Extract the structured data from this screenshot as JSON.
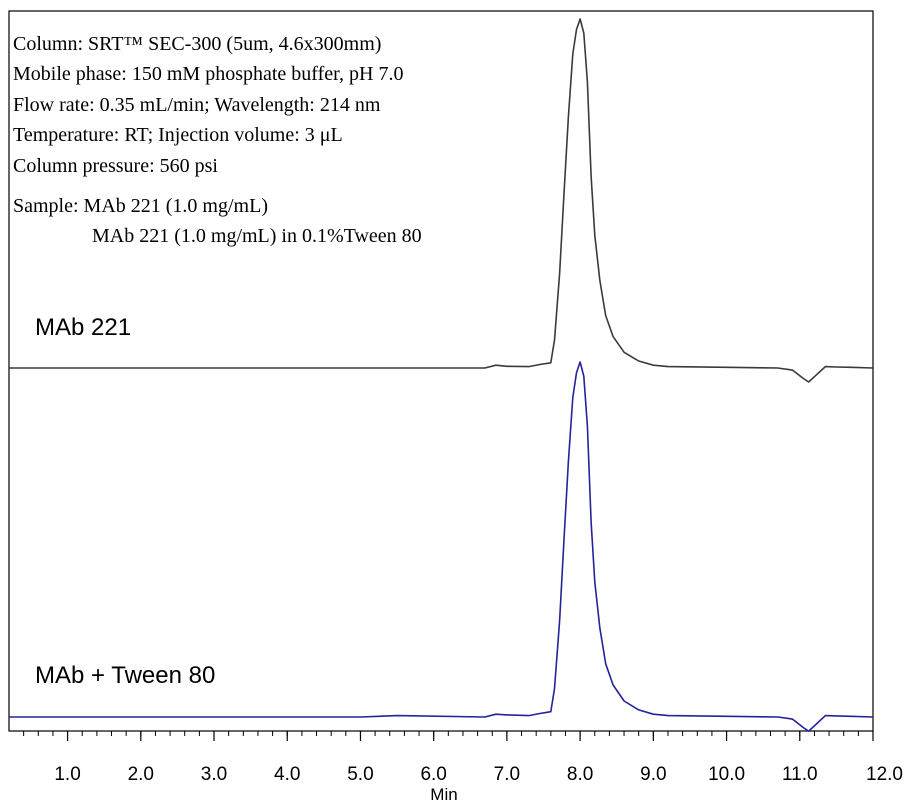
{
  "chart_data": {
    "type": "line",
    "chart_kind": "stacked chromatogram",
    "conditions": [
      "Column: SRT™  SEC-300 (5um, 4.6x300mm)",
      "Mobile phase: 150 mM phosphate buffer, pH 7.0",
      "Flow rate: 0.35 mL/min; Wavelength: 214 nm",
      "Temperature: RT; Injection volume: 3 μL",
      "Column pressure: 560 psi",
      "Sample: MAb 221 (1.0 mg/mL)",
      "MAb 221 (1.0 mg/mL) in 0.1%Tween 80"
    ],
    "xlabel": "Min",
    "xlim": [
      0.2,
      12.0
    ],
    "x_ticks": [
      "1.0",
      "2.0",
      "3.0",
      "4.0",
      "5.0",
      "6.0",
      "7.0",
      "8.0",
      "9.0",
      "10.0",
      "11.0",
      "12.0"
    ],
    "x_tick_values": [
      1,
      2,
      3,
      4,
      5,
      6,
      7,
      8,
      9,
      10,
      11,
      12
    ],
    "minor_tick_step": 0.2,
    "y_axis_shown": false,
    "grid": false,
    "colors": {
      "top_trace": "#3a3a3a",
      "bottom_trace": "#23239a",
      "frame": "#000000"
    },
    "series": [
      {
        "name": "MAb 221",
        "peak_x": 8.0,
        "relative_height": 1.0,
        "x": [
          0.2,
          6.7,
          6.85,
          7.0,
          7.3,
          7.45,
          7.6,
          7.65,
          7.72,
          7.78,
          7.84,
          7.9,
          7.95,
          8.0,
          8.05,
          8.1,
          8.15,
          8.2,
          8.27,
          8.35,
          8.45,
          8.6,
          8.8,
          9.0,
          9.2,
          10.0,
          10.7,
          10.9,
          11.05,
          11.12,
          11.2,
          11.35,
          11.5,
          11.7,
          12.0
        ],
        "y": [
          0,
          0,
          0.008,
          0.005,
          0.004,
          0.01,
          0.015,
          0.08,
          0.27,
          0.5,
          0.72,
          0.9,
          0.97,
          1.0,
          0.96,
          0.82,
          0.55,
          0.38,
          0.25,
          0.15,
          0.09,
          0.045,
          0.02,
          0.008,
          0.004,
          0.002,
          0,
          -0.006,
          -0.03,
          -0.04,
          -0.025,
          0.004,
          0.003,
          0.002,
          0.0
        ]
      },
      {
        "name": "MAb + Tween 80",
        "peak_x": 8.0,
        "relative_height": 1.0,
        "x": [
          0.2,
          5.0,
          5.5,
          6.7,
          6.85,
          7.0,
          7.3,
          7.45,
          7.6,
          7.65,
          7.72,
          7.78,
          7.84,
          7.9,
          7.95,
          8.0,
          8.05,
          8.1,
          8.15,
          8.2,
          8.27,
          8.35,
          8.45,
          8.6,
          8.8,
          9.0,
          9.2,
          10.0,
          10.7,
          10.9,
          11.05,
          11.12,
          11.2,
          11.35,
          11.5,
          11.7,
          12.0
        ],
        "y": [
          0,
          0,
          0.004,
          0,
          0.008,
          0.006,
          0.004,
          0.01,
          0.015,
          0.08,
          0.27,
          0.5,
          0.72,
          0.9,
          0.97,
          1.0,
          0.96,
          0.82,
          0.55,
          0.38,
          0.25,
          0.15,
          0.09,
          0.045,
          0.02,
          0.008,
          0.004,
          0.002,
          0,
          -0.006,
          -0.03,
          -0.04,
          -0.025,
          0.004,
          0.003,
          0.002,
          0.0
        ]
      }
    ]
  }
}
